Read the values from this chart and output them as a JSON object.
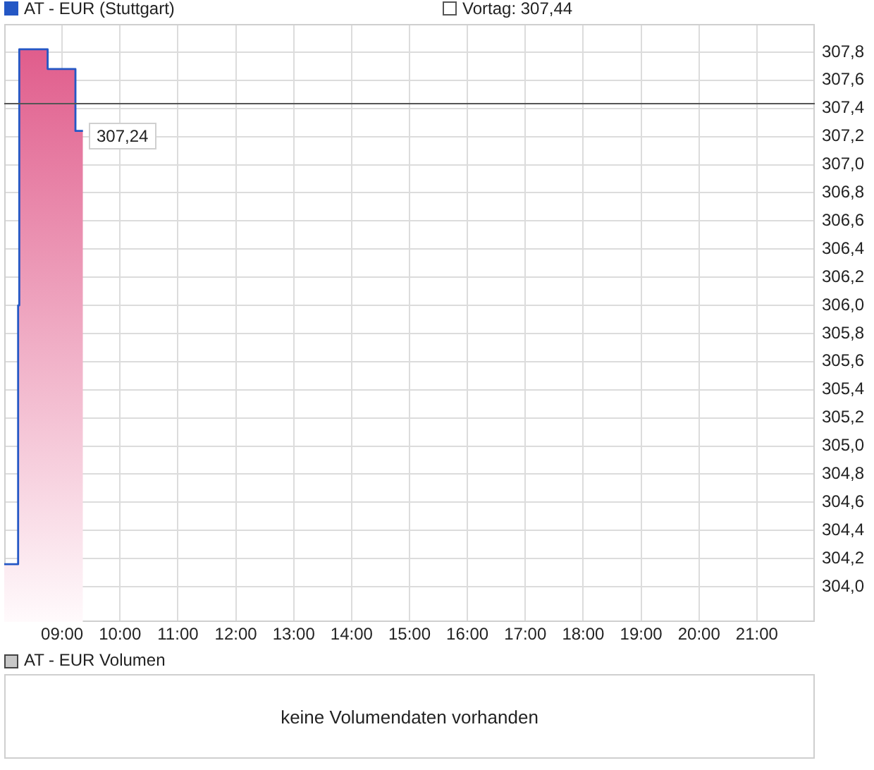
{
  "chart_data": [
    {
      "type": "area",
      "x": [
        8.0,
        8.24,
        8.24,
        8.26,
        8.26,
        8.75,
        8.75,
        9.23,
        9.23,
        9.36
      ],
      "series": [
        {
          "name": "AT - EUR (Stuttgart)",
          "color": "#2457c5",
          "values": [
            304.16,
            304.16,
            306.0,
            306.0,
            307.82,
            307.82,
            307.68,
            307.68,
            307.24,
            307.24
          ]
        }
      ],
      "xlim": [
        8,
        22
      ],
      "xticks": [
        {
          "value": 9,
          "label": "09:00"
        },
        {
          "value": 10,
          "label": "10:00"
        },
        {
          "value": 11,
          "label": "11:00"
        },
        {
          "value": 12,
          "label": "12:00"
        },
        {
          "value": 13,
          "label": "13:00"
        },
        {
          "value": 14,
          "label": "14:00"
        },
        {
          "value": 15,
          "label": "15:00"
        },
        {
          "value": 16,
          "label": "16:00"
        },
        {
          "value": 17,
          "label": "17:00"
        },
        {
          "value": 18,
          "label": "18:00"
        },
        {
          "value": 19,
          "label": "19:00"
        },
        {
          "value": 20,
          "label": "20:00"
        },
        {
          "value": 21,
          "label": "21:00"
        }
      ],
      "ylim": [
        303.75,
        308.0
      ],
      "yticks": [
        {
          "value": 304.0,
          "label": "304,0"
        },
        {
          "value": 304.2,
          "label": "304,2"
        },
        {
          "value": 304.4,
          "label": "304,4"
        },
        {
          "value": 304.6,
          "label": "304,6"
        },
        {
          "value": 304.8,
          "label": "304,8"
        },
        {
          "value": 305.0,
          "label": "305,0"
        },
        {
          "value": 305.2,
          "label": "305,2"
        },
        {
          "value": 305.4,
          "label": "305,4"
        },
        {
          "value": 305.6,
          "label": "305,6"
        },
        {
          "value": 305.8,
          "label": "305,8"
        },
        {
          "value": 306.0,
          "label": "306,0"
        },
        {
          "value": 306.2,
          "label": "306,2"
        },
        {
          "value": 306.4,
          "label": "306,4"
        },
        {
          "value": 306.6,
          "label": "306,6"
        },
        {
          "value": 306.8,
          "label": "306,8"
        },
        {
          "value": 307.0,
          "label": "307,0"
        },
        {
          "value": 307.2,
          "label": "307,2"
        },
        {
          "value": 307.4,
          "label": "307,4"
        },
        {
          "value": 307.6,
          "label": "307,6"
        },
        {
          "value": 307.8,
          "label": "307,8"
        }
      ],
      "ref_lines": [
        {
          "axis": "y",
          "value": 307.44,
          "label": "Vortag: 307,44",
          "color": "#555555"
        }
      ],
      "annotations": [
        {
          "text": "307,24",
          "x": 9.36,
          "y": 307.24
        }
      ],
      "grid": true,
      "legend": "top",
      "marker": "none"
    },
    {
      "type": "other",
      "title": "AT - EUR Volumen",
      "annotations": [
        "keine Volumendaten vorhanden"
      ]
    }
  ]
}
